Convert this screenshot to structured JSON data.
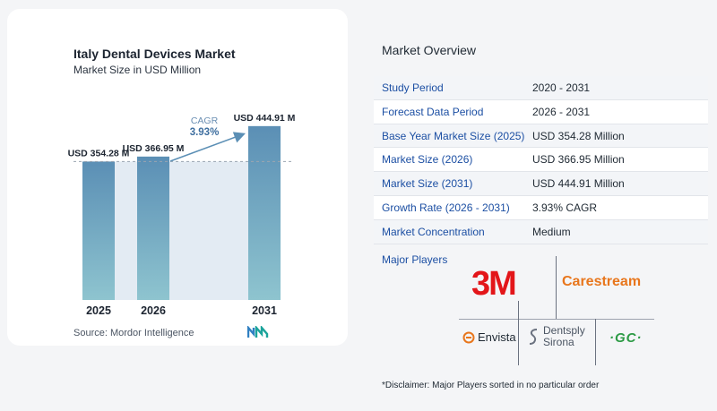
{
  "chart": {
    "title": "Italy Dental Devices Market",
    "subtitle": "Market Size in USD Million",
    "source": "Source:  Mordor Intelligence",
    "cagr_label": "CAGR",
    "cagr_value": "3.93%"
  },
  "chart_data": {
    "type": "bar",
    "title": "Italy Dental Devices Market",
    "subtitle": "Market Size in USD Million",
    "categories": [
      "2025",
      "2026",
      "2031"
    ],
    "values": [
      354.28,
      366.95,
      444.91
    ],
    "value_labels": [
      "USD 354.28 M",
      "USD 366.95 M",
      "USD 444.91 M"
    ],
    "unit": "USD Million",
    "annotation": {
      "label": "CAGR",
      "value": "3.93%"
    },
    "grid": false,
    "colors": {
      "bar_top": "#5b8fb5",
      "bar_bottom": "#8ec4cf",
      "shade": "#e3ebf3",
      "arrow": "#5b8fb5",
      "cagr_label": "#6b8fb3",
      "cagr_value": "#3f6fa0"
    }
  },
  "overview": {
    "title": "Market Overview",
    "rows": [
      {
        "label": "Study Period",
        "value": "2020 - 2031"
      },
      {
        "label": "Forecast Data Period",
        "value": "2026 - 2031"
      },
      {
        "label": "Base Year Market Size (2025)",
        "value": "USD 354.28 Million"
      },
      {
        "label": "Market Size (2026)",
        "value": "USD 366.95 Million"
      },
      {
        "label": "Market Size (2031)",
        "value": "USD 444.91 Million"
      },
      {
        "label": "Growth Rate (2026 - 2031)",
        "value": "3.93% CAGR"
      },
      {
        "label": "Market Concentration",
        "value": "Medium"
      }
    ]
  },
  "players": {
    "label": "Major Players",
    "logos": {
      "threem": "3M",
      "carestream": "Carestream",
      "envista": "Envista",
      "dentsply_line1": "Dentsply",
      "dentsply_line2": "Sirona",
      "gc": "·GC·"
    }
  },
  "disclaimer": "*Disclaimer: Major Players sorted in no particular order"
}
